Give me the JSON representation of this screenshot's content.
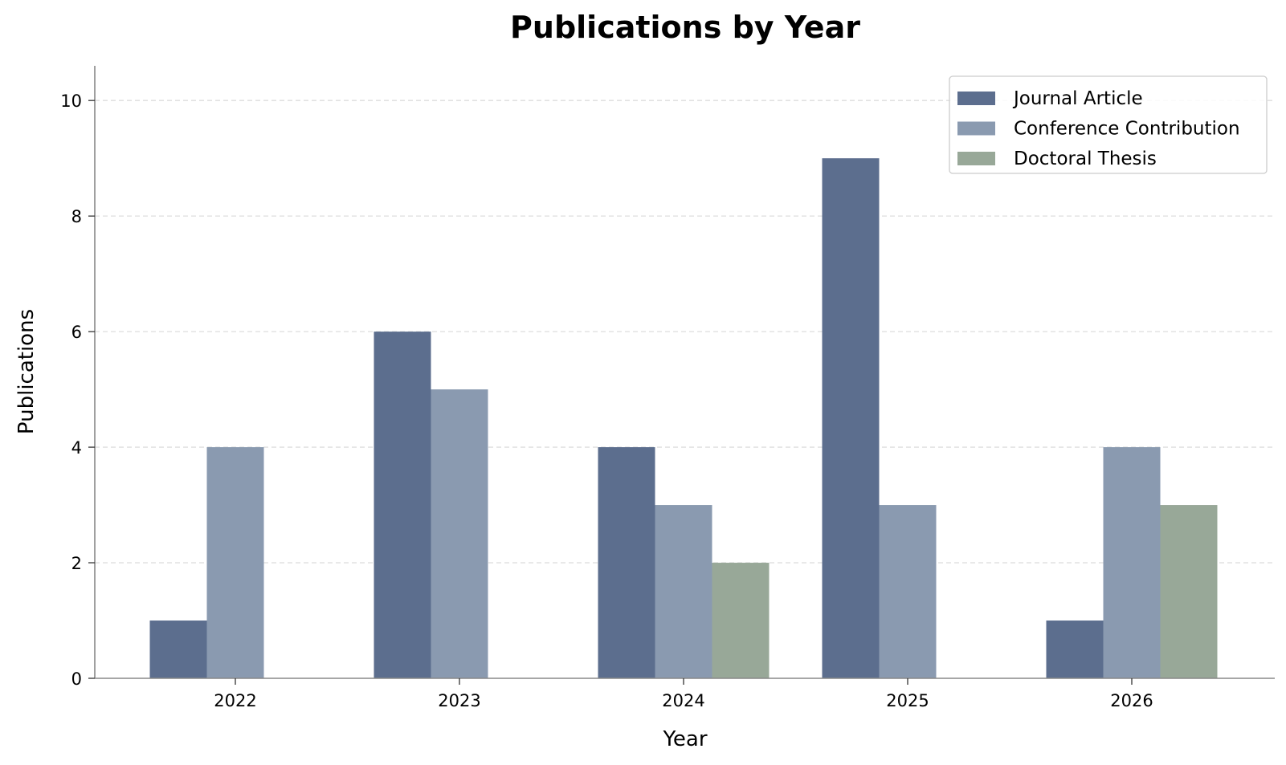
{
  "chart_data": {
    "type": "bar",
    "title": "Publications by Year",
    "xlabel": "Year",
    "ylabel": "Publications",
    "categories": [
      "2022",
      "2023",
      "2024",
      "2025",
      "2026"
    ],
    "series": [
      {
        "name": "Journal Article",
        "color": "#5c6e8e",
        "values": [
          1,
          6,
          4,
          9,
          1
        ]
      },
      {
        "name": "Conference Contribution",
        "color": "#8a9ab0",
        "values": [
          4,
          5,
          3,
          3,
          4
        ]
      },
      {
        "name": "Doctoral Thesis",
        "color": "#98a898",
        "values": [
          0,
          0,
          2,
          0,
          3
        ]
      }
    ],
    "ylim": [
      0,
      10.6
    ],
    "yticks": [
      0,
      2,
      4,
      6,
      8,
      10
    ],
    "grid": "y-dashed",
    "legend_position": "top-right",
    "axis_color": "#888888",
    "grid_color": "#dddddd"
  }
}
